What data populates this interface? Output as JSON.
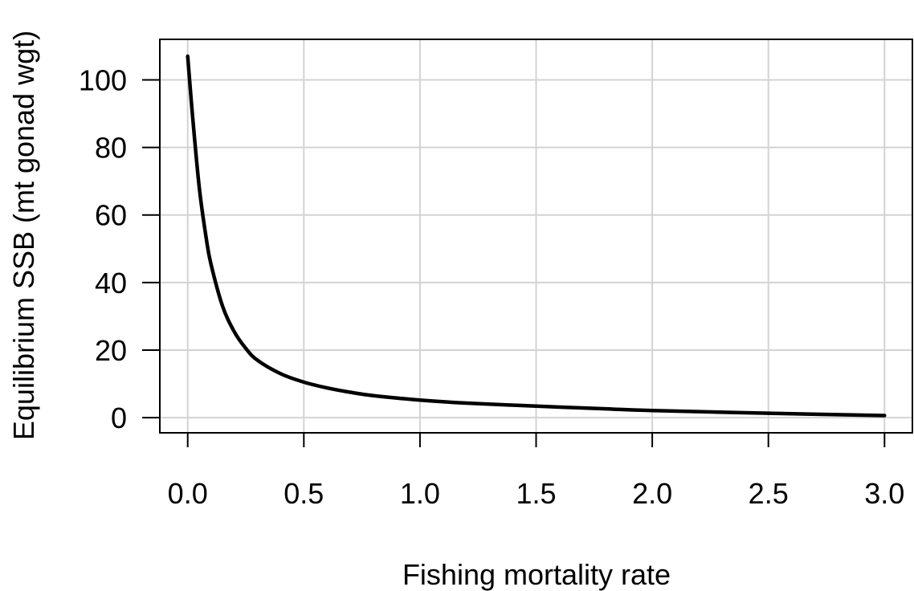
{
  "colors": {
    "grid": "#d3d3d3",
    "line": "#000000",
    "axis": "#000000",
    "background": "#ffffff"
  },
  "chart_data": {
    "type": "line",
    "title": "",
    "xlabel": "Fishing mortality rate",
    "ylabel": "Equilibrium SSB (mt gonad wgt)",
    "xlim": [
      -0.12,
      3.12
    ],
    "ylim": [
      -4.5,
      112
    ],
    "x_ticks": [
      0.0,
      0.5,
      1.0,
      1.5,
      2.0,
      2.5,
      3.0
    ],
    "x_tick_labels": [
      "0.0",
      "0.5",
      "1.0",
      "1.5",
      "2.0",
      "2.5",
      "3.0"
    ],
    "y_ticks": [
      0,
      20,
      40,
      60,
      80,
      100
    ],
    "y_tick_labels": [
      "0",
      "20",
      "40",
      "60",
      "80",
      "100"
    ],
    "grid": true,
    "legend": "none",
    "series": [
      {
        "x": [
          0.0,
          0.02,
          0.05,
          0.08,
          0.1,
          0.15,
          0.2,
          0.25,
          0.3,
          0.4,
          0.5,
          0.6,
          0.7,
          0.8,
          1.0,
          1.2,
          1.5,
          1.8,
          2.0,
          2.5,
          3.0
        ],
        "values": [
          107,
          90,
          68,
          53,
          45.5,
          33,
          25.5,
          20.5,
          17,
          13,
          10.5,
          8.8,
          7.5,
          6.5,
          5.2,
          4.3,
          3.4,
          2.6,
          2.1,
          1.3,
          0.6
        ]
      }
    ]
  }
}
